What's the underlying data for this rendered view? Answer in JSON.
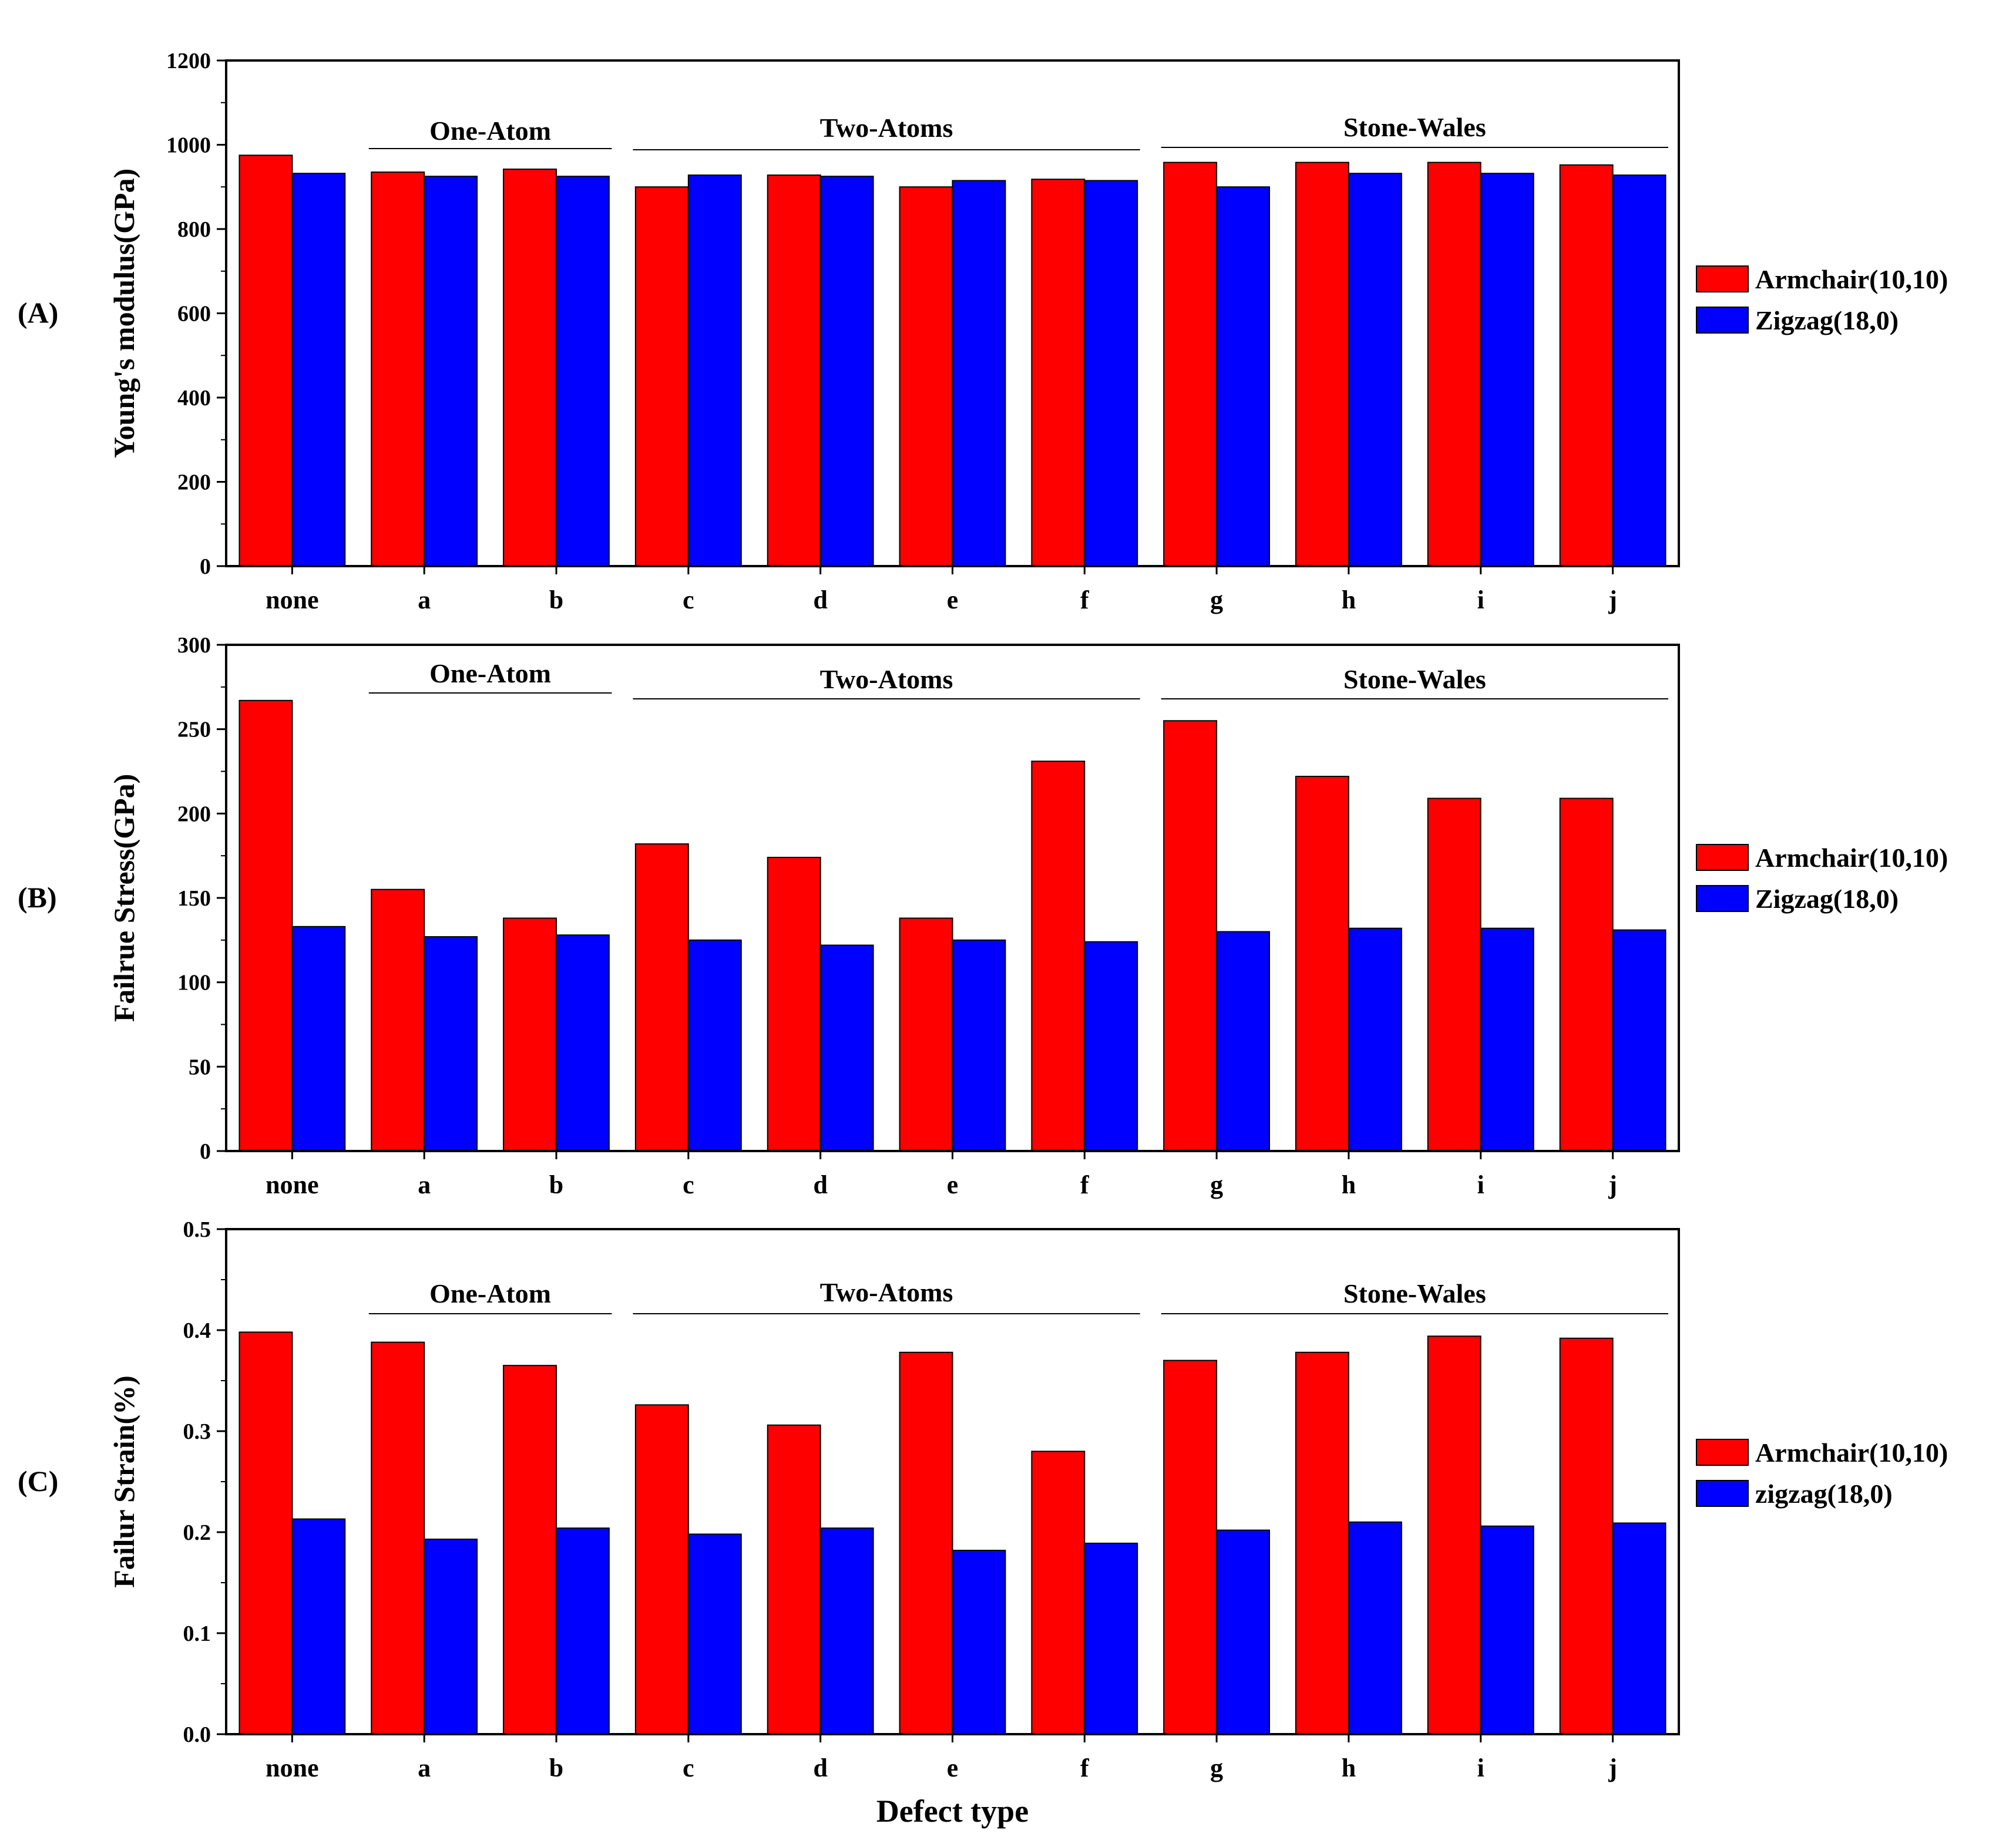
{
  "colors": {
    "series_0": "#ff0000",
    "series_1": "#0000ff"
  },
  "xlabel": "Defect type",
  "chart_data": [
    {
      "type": "bar",
      "panel_label": "(A)",
      "ylabel": "Young's modulus(GPa)",
      "ylim": [
        0,
        1200
      ],
      "yticks": [
        0,
        200,
        400,
        600,
        800,
        1000,
        1200
      ],
      "ytick_labels": [
        "0",
        "200",
        "400",
        "600",
        "800",
        "1000",
        "1200"
      ],
      "categories": [
        "none",
        "a",
        "b",
        "c",
        "d",
        "e",
        "f",
        "g",
        "h",
        "i",
        "j"
      ],
      "series": [
        {
          "name": "Armchair(10,10)",
          "values": [
            975,
            935,
            942,
            900,
            928,
            900,
            918,
            958,
            958,
            958,
            952
          ]
        },
        {
          "name": "Zigzag(18,0)",
          "values": [
            932,
            925,
            925,
            928,
            925,
            915,
            915,
            900,
            932,
            932,
            928
          ]
        }
      ],
      "groups": [
        {
          "label": "One-Atom",
          "from": "a",
          "to": "b"
        },
        {
          "label": "Two-Atoms",
          "from": "c",
          "to": "f"
        },
        {
          "label": "Stone-Wales",
          "from": "g",
          "to": "j"
        }
      ]
    },
    {
      "type": "bar",
      "panel_label": "(B)",
      "ylabel": "Failrue Stress(GPa)",
      "ylim": [
        0,
        300
      ],
      "yticks": [
        0,
        50,
        100,
        150,
        200,
        250,
        300
      ],
      "ytick_labels": [
        "0",
        "50",
        "100",
        "150",
        "200",
        "250",
        "300"
      ],
      "categories": [
        "none",
        "a",
        "b",
        "c",
        "d",
        "e",
        "f",
        "g",
        "h",
        "i",
        "j"
      ],
      "series": [
        {
          "name": "Armchair(10,10)",
          "values": [
            267,
            155,
            138,
            182,
            174,
            138,
            231,
            255,
            222,
            209,
            209
          ]
        },
        {
          "name": "Zigzag(18,0)",
          "values": [
            133,
            127,
            128,
            125,
            122,
            125,
            124,
            130,
            132,
            132,
            131
          ]
        }
      ],
      "groups": [
        {
          "label": "One-Atom",
          "from": "a",
          "to": "b"
        },
        {
          "label": "Two-Atoms",
          "from": "c",
          "to": "f"
        },
        {
          "label": "Stone-Wales",
          "from": "g",
          "to": "j"
        }
      ]
    },
    {
      "type": "bar",
      "panel_label": "(C)",
      "ylabel": "Failur Strain(%)",
      "ylim": [
        0,
        0.5
      ],
      "yticks": [
        0,
        0.1,
        0.2,
        0.3,
        0.4,
        0.5
      ],
      "ytick_labels": [
        "0.0",
        "0.1",
        "0.2",
        "0.3",
        "0.4",
        "0.5"
      ],
      "categories": [
        "none",
        "a",
        "b",
        "c",
        "d",
        "e",
        "f",
        "g",
        "h",
        "i",
        "j"
      ],
      "series": [
        {
          "name": "Armchair(10,10)",
          "values": [
            0.398,
            0.388,
            0.365,
            0.326,
            0.306,
            0.378,
            0.28,
            0.37,
            0.378,
            0.394,
            0.392
          ]
        },
        {
          "name": "zigzag(18,0)",
          "values": [
            0.213,
            0.193,
            0.204,
            0.198,
            0.204,
            0.182,
            0.189,
            0.202,
            0.21,
            0.206,
            0.209
          ]
        }
      ],
      "groups": [
        {
          "label": "One-Atom",
          "from": "a",
          "to": "b"
        },
        {
          "label": "Two-Atoms",
          "from": "c",
          "to": "f"
        },
        {
          "label": "Stone-Wales",
          "from": "g",
          "to": "j"
        }
      ]
    }
  ]
}
